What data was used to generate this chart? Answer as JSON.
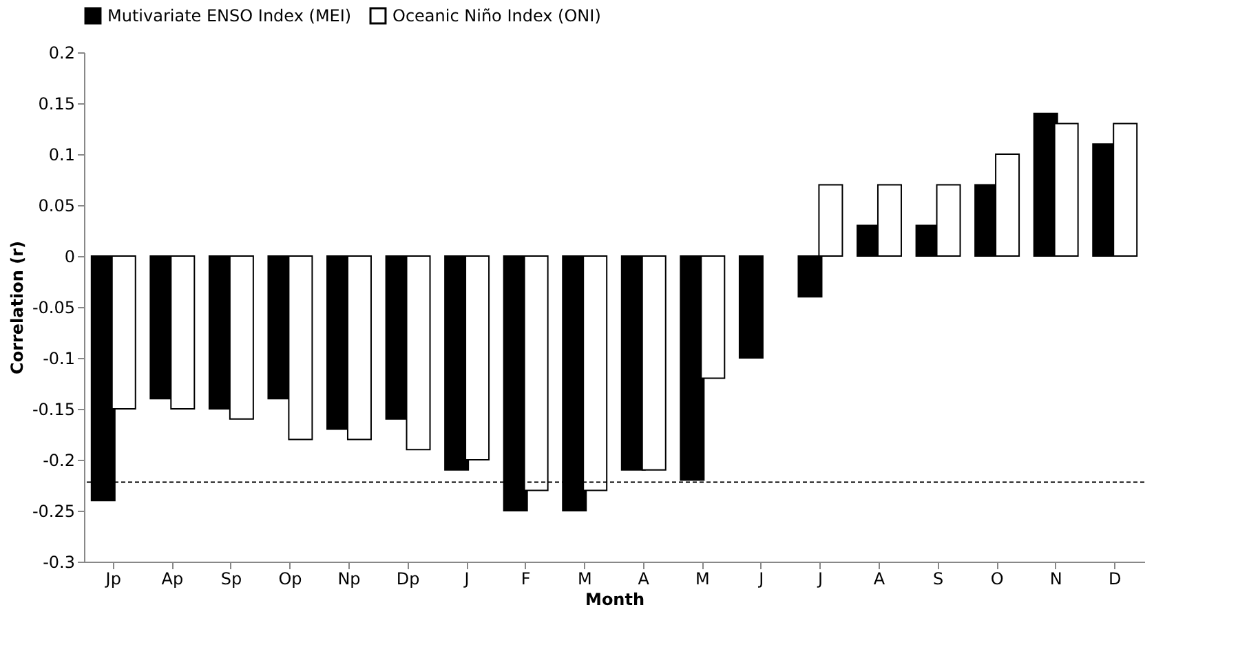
{
  "chart_data": {
    "type": "bar",
    "xlabel": "Month",
    "ylabel": "Correlation (r)",
    "categories": [
      "Jp",
      "Ap",
      "Sp",
      "Op",
      "Np",
      "Dp",
      "J",
      "F",
      "M",
      "A",
      "M",
      "J",
      "J",
      "A",
      "S",
      "O",
      "N",
      "D"
    ],
    "series": [
      {
        "name": "Mutivariate ENSO Index (MEI)",
        "color": "#000000",
        "values": [
          -0.24,
          -0.14,
          -0.15,
          -0.14,
          -0.17,
          -0.16,
          -0.21,
          -0.25,
          -0.25,
          -0.21,
          -0.22,
          -0.1,
          -0.04,
          0.03,
          0.03,
          0.07,
          0.14,
          0.11
        ]
      },
      {
        "name": "Oceanic Niño Index (ONI)",
        "color": "#ffffff",
        "values": [
          -0.15,
          -0.15,
          -0.16,
          -0.18,
          -0.18,
          -0.19,
          -0.2,
          -0.23,
          -0.23,
          -0.21,
          -0.12,
          null,
          0.07,
          0.07,
          0.07,
          0.1,
          0.13,
          0.13
        ]
      }
    ],
    "ylim": [
      -0.3,
      0.2
    ],
    "yticks": [
      -0.3,
      -0.25,
      -0.2,
      -0.15,
      -0.1,
      -0.05,
      0,
      0.05,
      0.1,
      0.15,
      0.2
    ],
    "ref_lines": [
      {
        "axis": "y",
        "value": -0.222,
        "line_style": "dashed",
        "color": "#000000"
      }
    ],
    "legend": "top",
    "grid": false
  }
}
